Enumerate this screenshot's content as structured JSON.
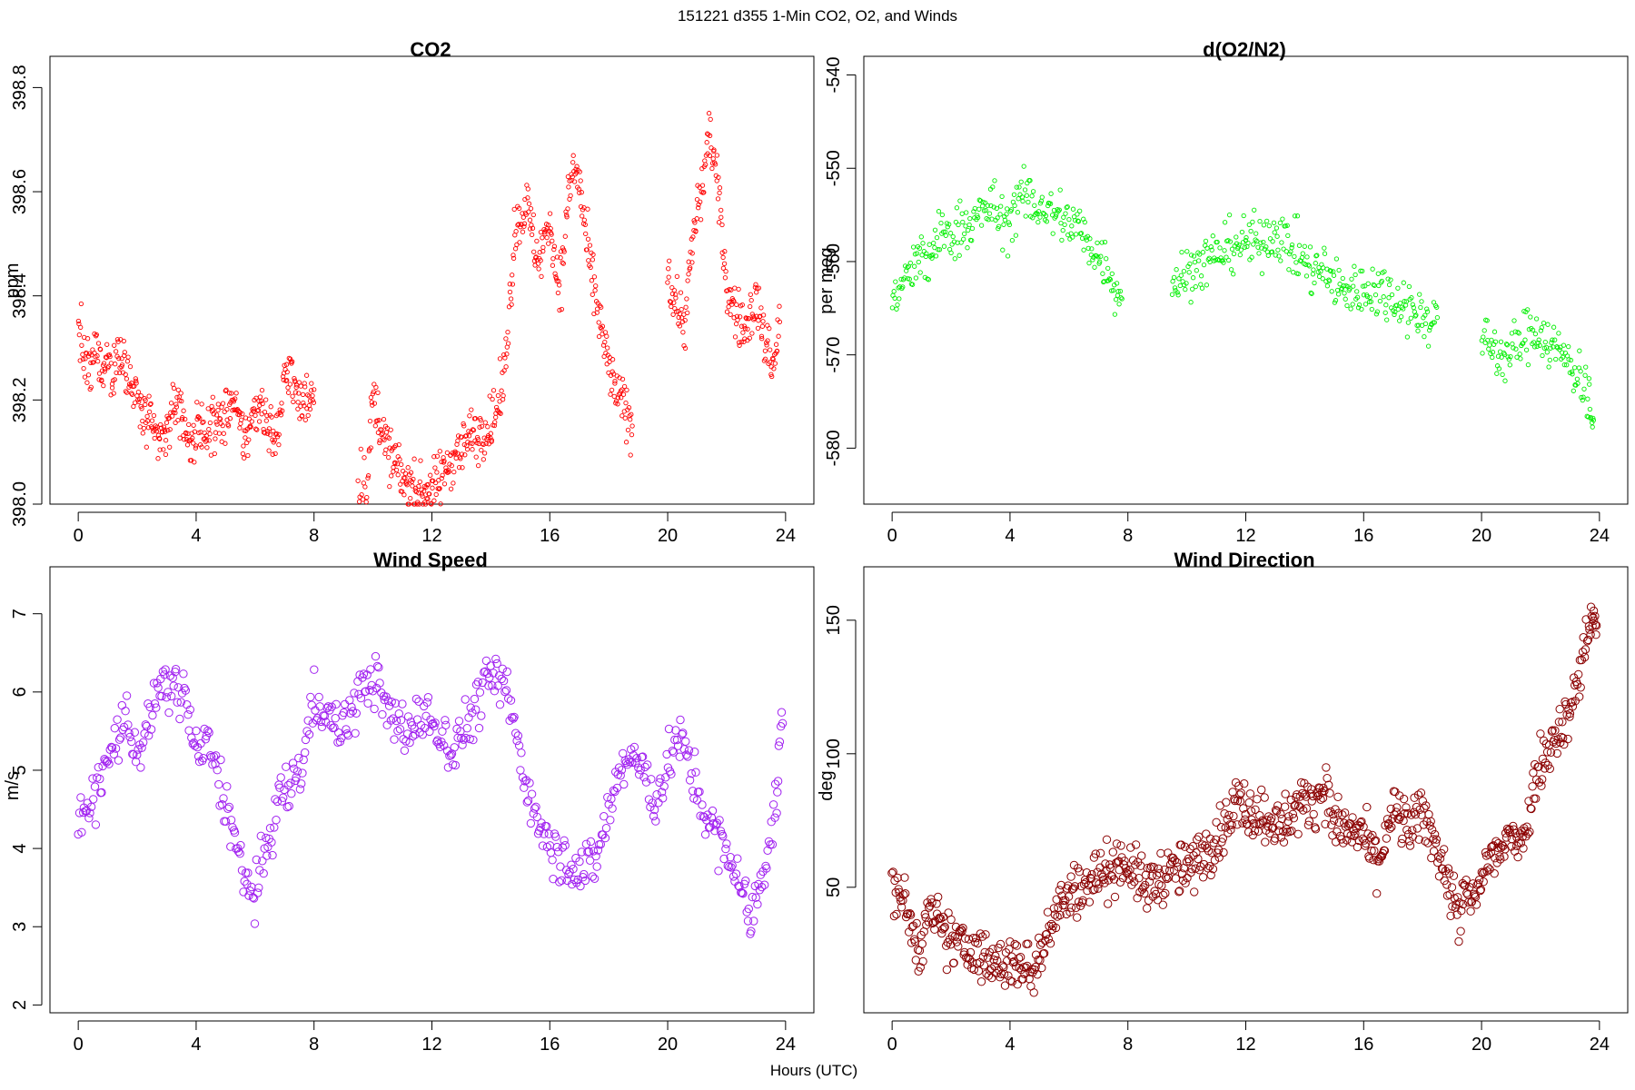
{
  "figure": {
    "title": "151221   d355   1-Min CO2, O2, and Winds",
    "xlabel": "Hours (UTC)"
  },
  "chart_data": [
    {
      "type": "scatter",
      "title": "CO2",
      "xlabel": "",
      "ylabel": "ppm",
      "xlim": [
        -0.96,
        24.96
      ],
      "ylim": [
        398.0,
        398.86
      ],
      "xticks": [
        0,
        4,
        8,
        12,
        16,
        20,
        24
      ],
      "yticks": [
        398.0,
        398.2,
        398.4,
        398.6,
        398.8
      ],
      "ytick_labels": [
        "398.0",
        "398.2",
        "398.4",
        "398.6",
        "398.8"
      ],
      "marker": "circle",
      "marker_size": "small",
      "color": "#ff0000",
      "segments": [
        {
          "x": [
            0.0,
            0.2,
            0.4,
            0.6,
            0.8,
            1.0,
            1.2,
            1.4,
            1.6,
            1.8,
            2.0,
            2.2,
            2.4,
            2.6,
            2.8,
            3.0,
            3.2,
            3.4,
            3.6,
            3.8,
            4.0,
            4.2,
            4.4,
            4.6,
            4.8,
            5.0,
            5.2,
            5.4,
            5.6,
            5.8,
            6.0,
            6.2,
            6.4,
            6.6,
            6.8,
            7.0,
            7.2,
            7.4,
            7.6,
            7.8,
            8.0
          ],
          "y": [
            398.35,
            398.28,
            398.25,
            398.3,
            398.26,
            398.28,
            398.24,
            398.3,
            398.28,
            398.22,
            398.2,
            398.17,
            398.15,
            398.13,
            398.12,
            398.14,
            398.18,
            398.2,
            398.15,
            398.12,
            398.13,
            398.14,
            398.15,
            398.16,
            398.15,
            398.17,
            398.2,
            398.16,
            398.13,
            398.14,
            398.18,
            398.2,
            398.16,
            398.13,
            398.14,
            398.24,
            398.27,
            398.2,
            398.19,
            398.21,
            398.22
          ]
        },
        {
          "x": [
            9.5,
            9.8,
            10.0,
            10.2,
            10.4,
            10.6,
            10.8,
            11.0,
            11.2,
            11.4,
            11.6,
            11.8,
            12.0,
            12.2,
            12.4,
            12.6,
            12.8,
            13.0,
            13.2,
            13.4,
            13.6,
            13.8,
            14.0,
            14.2,
            14.4,
            14.6,
            14.8,
            15.0,
            15.2,
            15.4,
            15.6,
            15.8,
            16.0,
            16.2,
            16.4,
            16.6,
            16.8,
            17.0,
            17.2,
            17.4,
            17.6,
            17.8,
            18.0,
            18.2,
            18.4,
            18.6,
            18.8
          ],
          "y": [
            398.05,
            398.05,
            398.2,
            398.17,
            398.12,
            398.09,
            398.07,
            398.05,
            398.04,
            398.03,
            398.02,
            398.03,
            398.03,
            398.04,
            398.06,
            398.08,
            398.1,
            398.11,
            398.12,
            398.14,
            398.13,
            398.15,
            398.15,
            398.18,
            398.22,
            398.35,
            398.52,
            398.55,
            398.58,
            398.52,
            398.47,
            398.5,
            398.55,
            398.45,
            398.43,
            398.58,
            398.65,
            398.62,
            398.52,
            398.44,
            398.38,
            398.32,
            398.26,
            398.22,
            398.2,
            398.18,
            398.15
          ]
        },
        {
          "x": [
            20.0,
            20.2,
            20.4,
            20.6,
            20.8,
            21.0,
            21.2,
            21.4,
            21.6,
            21.8,
            22.0,
            22.2,
            22.4,
            22.6,
            22.8,
            23.0,
            23.2,
            23.4,
            23.6,
            23.8
          ],
          "y": [
            398.45,
            398.4,
            398.37,
            398.35,
            398.48,
            398.56,
            398.62,
            398.72,
            398.65,
            398.55,
            398.42,
            398.38,
            398.36,
            398.33,
            398.36,
            398.4,
            398.33,
            398.3,
            398.27,
            398.35
          ]
        }
      ]
    },
    {
      "type": "scatter",
      "title": "d(O2/N2)",
      "xlabel": "",
      "ylabel": "per meg",
      "xlim": [
        -0.96,
        24.96
      ],
      "ylim": [
        -586,
        -538
      ],
      "xticks": [
        0,
        4,
        8,
        12,
        16,
        20,
        24
      ],
      "yticks": [
        -580,
        -570,
        -560,
        -550,
        -540
      ],
      "ytick_labels": [
        "-580",
        "-570",
        "-560",
        "-550",
        "-540"
      ],
      "marker": "circle",
      "marker_size": "small",
      "color": "#00ee00",
      "segments": [
        {
          "x": [
            0.0,
            0.3,
            0.6,
            0.9,
            1.2,
            1.5,
            1.8,
            2.1,
            2.4,
            2.7,
            3.0,
            3.3,
            3.6,
            3.9,
            4.2,
            4.5,
            4.8,
            5.1,
            5.4,
            5.7,
            6.0,
            6.3,
            6.6,
            6.9,
            7.2,
            7.5,
            7.8
          ],
          "y": [
            -564,
            -563,
            -561,
            -560,
            -560,
            -558,
            -557,
            -557,
            -556,
            -556,
            -555,
            -554,
            -555,
            -556,
            -554,
            -553,
            -554,
            -554,
            -555,
            -555,
            -556,
            -556,
            -558,
            -559,
            -560,
            -562,
            -564
          ]
        },
        {
          "x": [
            9.5,
            9.8,
            10.1,
            10.4,
            10.7,
            11.0,
            11.3,
            11.6,
            11.9,
            12.2,
            12.5,
            12.8,
            13.1,
            13.4,
            13.7,
            14.0,
            14.3,
            14.6,
            14.9,
            15.2,
            15.5,
            15.8,
            16.1,
            16.4,
            16.7,
            17.0,
            17.3,
            17.6,
            17.9,
            18.2,
            18.5
          ],
          "y": [
            -562,
            -562,
            -561,
            -560,
            -560,
            -559,
            -559,
            -558,
            -558,
            -558,
            -558,
            -557,
            -557,
            -558,
            -559,
            -560,
            -561,
            -561,
            -562,
            -563,
            -563,
            -563,
            -563,
            -563,
            -563,
            -564,
            -564,
            -565,
            -566,
            -566,
            -566
          ]
        },
        {
          "x": [
            20.0,
            20.3,
            20.6,
            20.9,
            21.2,
            21.5,
            21.8,
            22.1,
            22.4,
            22.7,
            23.0,
            23.3,
            23.6,
            23.8
          ],
          "y": [
            -568,
            -569,
            -570,
            -570,
            -569,
            -568,
            -567,
            -568,
            -569,
            -570,
            -571,
            -572,
            -574,
            -577
          ]
        }
      ]
    },
    {
      "type": "scatter",
      "title": "Wind Speed",
      "xlabel": "",
      "ylabel": "m/s",
      "xlim": [
        -0.96,
        24.96
      ],
      "ylim": [
        1.9,
        7.6
      ],
      "xticks": [
        0,
        4,
        8,
        12,
        16,
        20,
        24
      ],
      "yticks": [
        2,
        3,
        4,
        5,
        6,
        7
      ],
      "ytick_labels": [
        "2",
        "3",
        "4",
        "5",
        "6",
        "7"
      ],
      "marker": "circle",
      "marker_size": "large",
      "color": "#a020f0",
      "segments": [
        {
          "x": [
            0.0,
            0.4,
            0.8,
            1.2,
            1.6,
            2.0,
            2.4,
            2.8,
            3.2,
            3.6,
            4.0,
            4.4,
            4.8,
            5.2,
            5.6,
            6.0,
            6.4,
            6.8,
            7.2,
            7.6,
            8.0,
            8.4,
            8.8,
            9.2,
            9.6,
            10.0,
            10.4,
            10.8,
            11.2,
            11.6,
            12.0,
            12.4,
            12.8,
            13.2,
            13.6,
            14.0,
            14.4,
            14.8,
            15.2,
            15.6,
            16.0,
            16.4,
            16.8,
            17.2,
            17.6,
            18.0,
            18.4,
            18.8,
            19.2,
            19.6,
            20.0,
            20.4,
            20.8,
            21.2,
            21.6,
            22.0,
            22.4,
            22.8,
            23.2,
            23.6,
            23.9
          ],
          "y": [
            4.2,
            4.6,
            4.9,
            5.3,
            5.7,
            5.2,
            5.6,
            6.0,
            6.1,
            6.0,
            5.2,
            5.3,
            4.9,
            4.3,
            3.6,
            3.4,
            4.0,
            4.6,
            4.8,
            5.1,
            5.9,
            5.8,
            5.5,
            5.7,
            6.0,
            6.2,
            5.8,
            5.6,
            5.5,
            5.7,
            5.6,
            5.4,
            5.3,
            5.6,
            5.9,
            6.2,
            6.1,
            5.6,
            4.8,
            4.4,
            4.1,
            3.9,
            3.8,
            3.7,
            3.9,
            4.5,
            5.0,
            5.2,
            4.9,
            4.6,
            5.1,
            5.4,
            5.0,
            4.5,
            4.2,
            3.9,
            3.7,
            3.0,
            3.7,
            4.3,
            5.6
          ]
        }
      ]
    },
    {
      "type": "scatter",
      "title": "Wind Direction",
      "xlabel": "",
      "ylabel": "deg",
      "xlim": [
        -0.96,
        24.96
      ],
      "ylim": [
        3,
        170
      ],
      "xticks": [
        0,
        4,
        8,
        12,
        16,
        20,
        24
      ],
      "yticks": [
        50,
        100,
        150
      ],
      "ytick_labels": [
        "50",
        "100",
        "150"
      ],
      "marker": "circle",
      "marker_size": "large",
      "color": "#8b0000",
      "segments": [
        {
          "x": [
            0.0,
            0.3,
            0.6,
            0.9,
            1.2,
            1.5,
            1.8,
            2.1,
            2.4,
            2.7,
            3.0,
            3.3,
            3.6,
            3.9,
            4.2,
            4.5,
            4.8,
            5.1,
            5.4,
            5.7,
            6.0,
            6.3,
            6.6,
            6.9,
            7.2,
            7.5,
            7.8,
            8.1,
            8.4,
            8.7,
            9.0,
            9.3,
            9.6,
            9.9,
            10.2,
            10.5,
            10.8,
            11.1,
            11.4,
            11.7,
            12.0,
            12.3,
            12.6,
            12.9,
            13.2,
            13.5,
            13.8,
            14.1,
            14.4,
            14.7,
            15.0,
            15.3,
            15.6,
            15.9,
            16.2,
            16.5,
            16.8,
            17.1,
            17.4,
            17.7,
            18.0,
            18.3,
            18.6,
            18.9,
            19.2,
            19.5,
            19.8,
            20.1,
            20.4,
            20.7,
            21.0,
            21.3,
            21.6,
            21.9,
            22.2,
            22.5,
            22.8,
            23.1,
            23.4,
            23.7,
            23.9
          ],
          "y": [
            52,
            48,
            36,
            28,
            38,
            37,
            32,
            30,
            27,
            28,
            24,
            22,
            20,
            22,
            22,
            20,
            18,
            30,
            38,
            44,
            46,
            50,
            52,
            54,
            56,
            58,
            60,
            58,
            52,
            50,
            54,
            55,
            56,
            56,
            58,
            62,
            66,
            70,
            76,
            82,
            80,
            78,
            77,
            76,
            72,
            78,
            80,
            82,
            84,
            88,
            72,
            74,
            68,
            72,
            64,
            60,
            72,
            78,
            74,
            72,
            78,
            70,
            62,
            50,
            40,
            46,
            44,
            58,
            62,
            64,
            68,
            70,
            74,
            98,
            100,
            108,
            112,
            118,
            135,
            152,
            148
          ]
        }
      ]
    }
  ]
}
